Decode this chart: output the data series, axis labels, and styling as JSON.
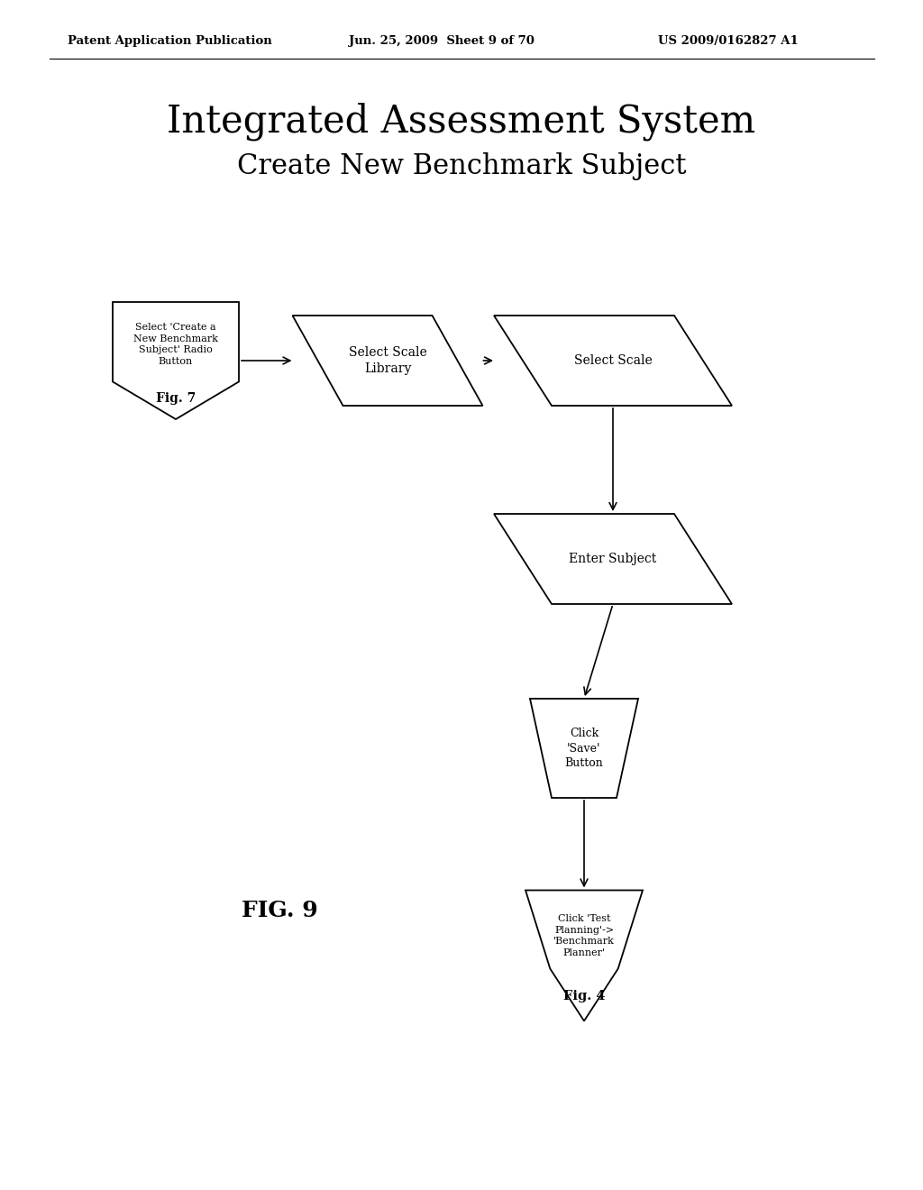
{
  "title_line1": "Integrated Assessment System",
  "title_line2": "Create New Benchmark Subject",
  "header_left": "Patent Application Publication",
  "header_mid": "Jun. 25, 2009  Sheet 9 of 70",
  "header_right": "US 2009/0162827 A1",
  "fig_label": "FIG. 9",
  "bg_color": "#ffffff",
  "shape_edge_color": "#000000",
  "shape_face_color": "#ffffff"
}
